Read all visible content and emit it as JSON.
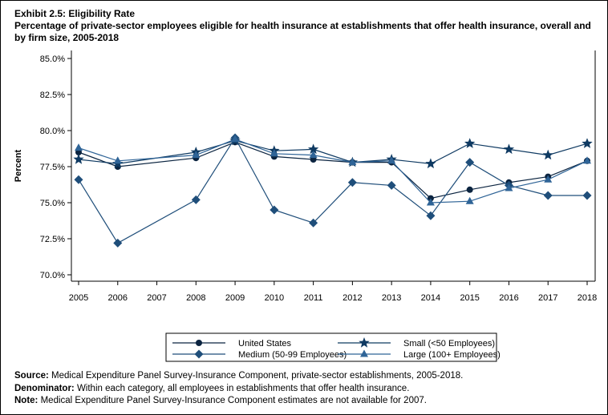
{
  "title": "Exhibit 2.5: Eligibility Rate",
  "subtitle": "Percentage of private-sector employees eligible for health insurance at establishments that offer health insurance, overall and by firm size, 2005-2018",
  "chart_data": {
    "type": "line",
    "ylabel": "Percent",
    "xlabel": "",
    "ylim": [
      70,
      85
    ],
    "yticks": [
      "70.0%",
      "72.5%",
      "75.0%",
      "77.5%",
      "80.0%",
      "82.5%",
      "85.0%"
    ],
    "x": [
      "2005",
      "2006",
      "2007",
      "2008",
      "2009",
      "2010",
      "2011",
      "2012",
      "2013",
      "2014",
      "2015",
      "2016",
      "2017",
      "2018"
    ],
    "legend_position": "bottom",
    "grid": false,
    "series": [
      {
        "name": "United States",
        "marker": "circle",
        "color": "#0b2440",
        "values": [
          78.5,
          77.5,
          null,
          78.1,
          79.2,
          78.2,
          78.0,
          77.8,
          77.8,
          75.3,
          75.9,
          76.4,
          76.8,
          77.9
        ]
      },
      {
        "name": "Small (<50 Employees)",
        "marker": "star",
        "color": "#0f3a62",
        "values": [
          78.0,
          77.7,
          null,
          78.5,
          79.3,
          78.6,
          78.7,
          77.8,
          78.0,
          77.7,
          79.1,
          78.7,
          78.3,
          79.1
        ]
      },
      {
        "name": "Medium (50-99 Employees)",
        "marker": "diamond",
        "color": "#1f4e7a",
        "values": [
          76.6,
          72.2,
          null,
          75.2,
          79.5,
          74.5,
          73.6,
          76.4,
          76.2,
          74.1,
          77.8,
          76.2,
          75.5,
          75.5
        ]
      },
      {
        "name": "Large (100+ Employees)",
        "marker": "triangle",
        "color": "#2f6497",
        "values": [
          78.8,
          77.9,
          null,
          78.3,
          79.4,
          78.4,
          78.3,
          77.8,
          77.9,
          75.0,
          75.1,
          76.0,
          76.6,
          77.9
        ]
      }
    ]
  },
  "notes": {
    "source_label": "Source:",
    "source": "Medical Expenditure Panel Survey-Insurance Component, private-sector establishments, 2005-2018.",
    "denominator_label": "Denominator:",
    "denominator": "Within each category, all employees in establishments that offer health insurance.",
    "note_label": "Note:",
    "note": "Medical Expenditure Panel Survey-Insurance Component estimates are not available for 2007."
  }
}
